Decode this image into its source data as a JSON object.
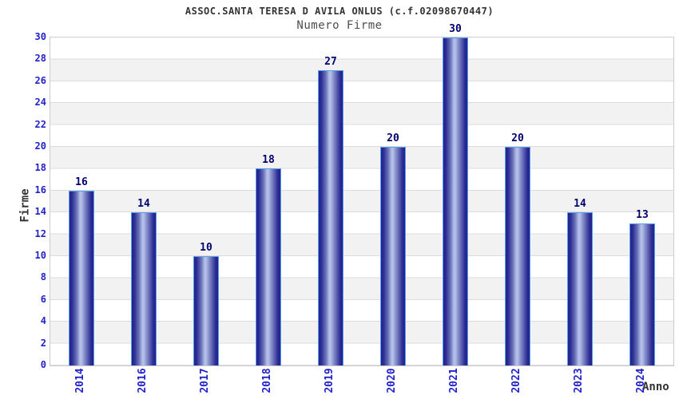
{
  "chart_data": {
    "type": "bar",
    "title": "ASSOC.SANTA TERESA D AVILA ONLUS (c.f.02098670447)",
    "subtitle": "Numero Firme",
    "xlabel": "Anno",
    "ylabel": "Firme",
    "categories": [
      "2014",
      "2016",
      "2017",
      "2018",
      "2019",
      "2020",
      "2021",
      "2022",
      "2023",
      "2024"
    ],
    "values": [
      16,
      14,
      10,
      18,
      27,
      20,
      30,
      20,
      14,
      13
    ],
    "ylim": [
      0,
      30
    ],
    "ytick_step": 2,
    "yticks": [
      0,
      2,
      4,
      6,
      8,
      10,
      12,
      14,
      16,
      18,
      20,
      22,
      24,
      26,
      28,
      30
    ],
    "grid": "horizontal gridlines every 2 units with alternating white/gray bands",
    "legend": "none",
    "colors": {
      "tick_label": "#2222cc",
      "value_label": "#000070",
      "title": "#333333",
      "subtitle": "#4d4d4d",
      "axis_title": "#333333",
      "bar_dark": "#23238a",
      "bar_light": "#b5bee8",
      "bar_border": "#55a0ee",
      "plot_border": "#cccccc",
      "band_gray": "#f2f2f2",
      "gridline": "#dcdcdc",
      "background": "#ffffff"
    }
  }
}
